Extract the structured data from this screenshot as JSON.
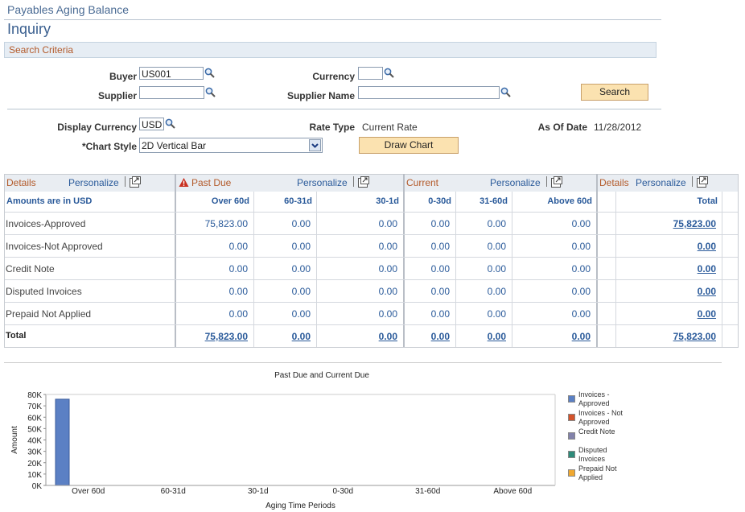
{
  "header": {
    "title": "Payables Aging Balance",
    "subtitle": "Inquiry"
  },
  "search": {
    "heading": "Search Criteria",
    "buyer_label": "Buyer",
    "buyer": "US001",
    "currency_label": "Currency",
    "supplier_label": "Supplier",
    "supplier_name_label": "Supplier Name",
    "search_button": "Search"
  },
  "display": {
    "currency_label": "Display Currency",
    "currency": "USD",
    "rate_type_label": "Rate Type",
    "rate_type": "Current Rate",
    "as_of_date_label": "As Of Date",
    "as_of_date": "11/28/2012",
    "chart_style_label": "*Chart Style",
    "chart_style": "2D Vertical Bar",
    "draw_button": "Draw Chart"
  },
  "grid": {
    "groups": [
      {
        "title": "Details",
        "personalize": "Personalize"
      },
      {
        "title": "Past Due",
        "personalize": "Personalize"
      },
      {
        "title": "Current",
        "personalize": "Personalize"
      },
      {
        "title": "Details",
        "personalize": "Personalize"
      }
    ],
    "columns": [
      "Amounts are in USD",
      "Over 60d",
      "60-31d",
      "30-1d",
      "0-30d",
      "31-60d",
      "Above 60d",
      "Total"
    ],
    "rows": [
      [
        "Invoices-Approved",
        "75,823.00",
        "0.00",
        "0.00",
        "0.00",
        "0.00",
        "0.00",
        "75,823.00"
      ],
      [
        "Invoices-Not Approved",
        "0.00",
        "0.00",
        "0.00",
        "0.00",
        "0.00",
        "0.00",
        "0.00"
      ],
      [
        "Credit Note",
        "0.00",
        "0.00",
        "0.00",
        "0.00",
        "0.00",
        "0.00",
        "0.00"
      ],
      [
        "Disputed Invoices",
        "0.00",
        "0.00",
        "0.00",
        "0.00",
        "0.00",
        "0.00",
        "0.00"
      ],
      [
        "Prepaid Not Applied",
        "0.00",
        "0.00",
        "0.00",
        "0.00",
        "0.00",
        "0.00",
        "0.00"
      ],
      [
        "Total",
        "75,823.00",
        "0.00",
        "0.00",
        "0.00",
        "0.00",
        "0.00",
        "75,823.00"
      ]
    ]
  },
  "chart_data": {
    "type": "bar",
    "title": "Past Due and Current Due",
    "x_label": "Aging Time Periods",
    "y_label": "Amount",
    "categories": [
      "Over 60d",
      "60-31d",
      "30-1d",
      "0-30d",
      "31-60d",
      "Above 60d"
    ],
    "series": [
      {
        "name": "Invoices - Approved",
        "color": "#5b80c4",
        "values": [
          75823,
          0,
          0,
          0,
          0,
          0
        ]
      },
      {
        "name": "Invoices - Not Approved",
        "color": "#d4532b",
        "values": [
          0,
          0,
          0,
          0,
          0,
          0
        ]
      },
      {
        "name": "Credit Note",
        "color": "#8282aa",
        "values": [
          0,
          0,
          0,
          0,
          0,
          0
        ]
      },
      {
        "name": "Disputed Invoices",
        "color": "#2e8b7a",
        "values": [
          0,
          0,
          0,
          0,
          0,
          0
        ]
      },
      {
        "name": "Prepaid Not Applied",
        "color": "#f0a830",
        "values": [
          0,
          0,
          0,
          0,
          0,
          0
        ]
      }
    ],
    "ylim": [
      0,
      80000
    ],
    "yticks": [
      {
        "value": 0,
        "label": "0K"
      },
      {
        "value": 10000,
        "label": "10K"
      },
      {
        "value": 20000,
        "label": "20K"
      },
      {
        "value": 30000,
        "label": "30K"
      },
      {
        "value": 40000,
        "label": "40K"
      },
      {
        "value": 50000,
        "label": "50K"
      },
      {
        "value": 60000,
        "label": "60K"
      },
      {
        "value": 70000,
        "label": "70K"
      },
      {
        "value": 80000,
        "label": "80K"
      }
    ],
    "legend": "right"
  }
}
